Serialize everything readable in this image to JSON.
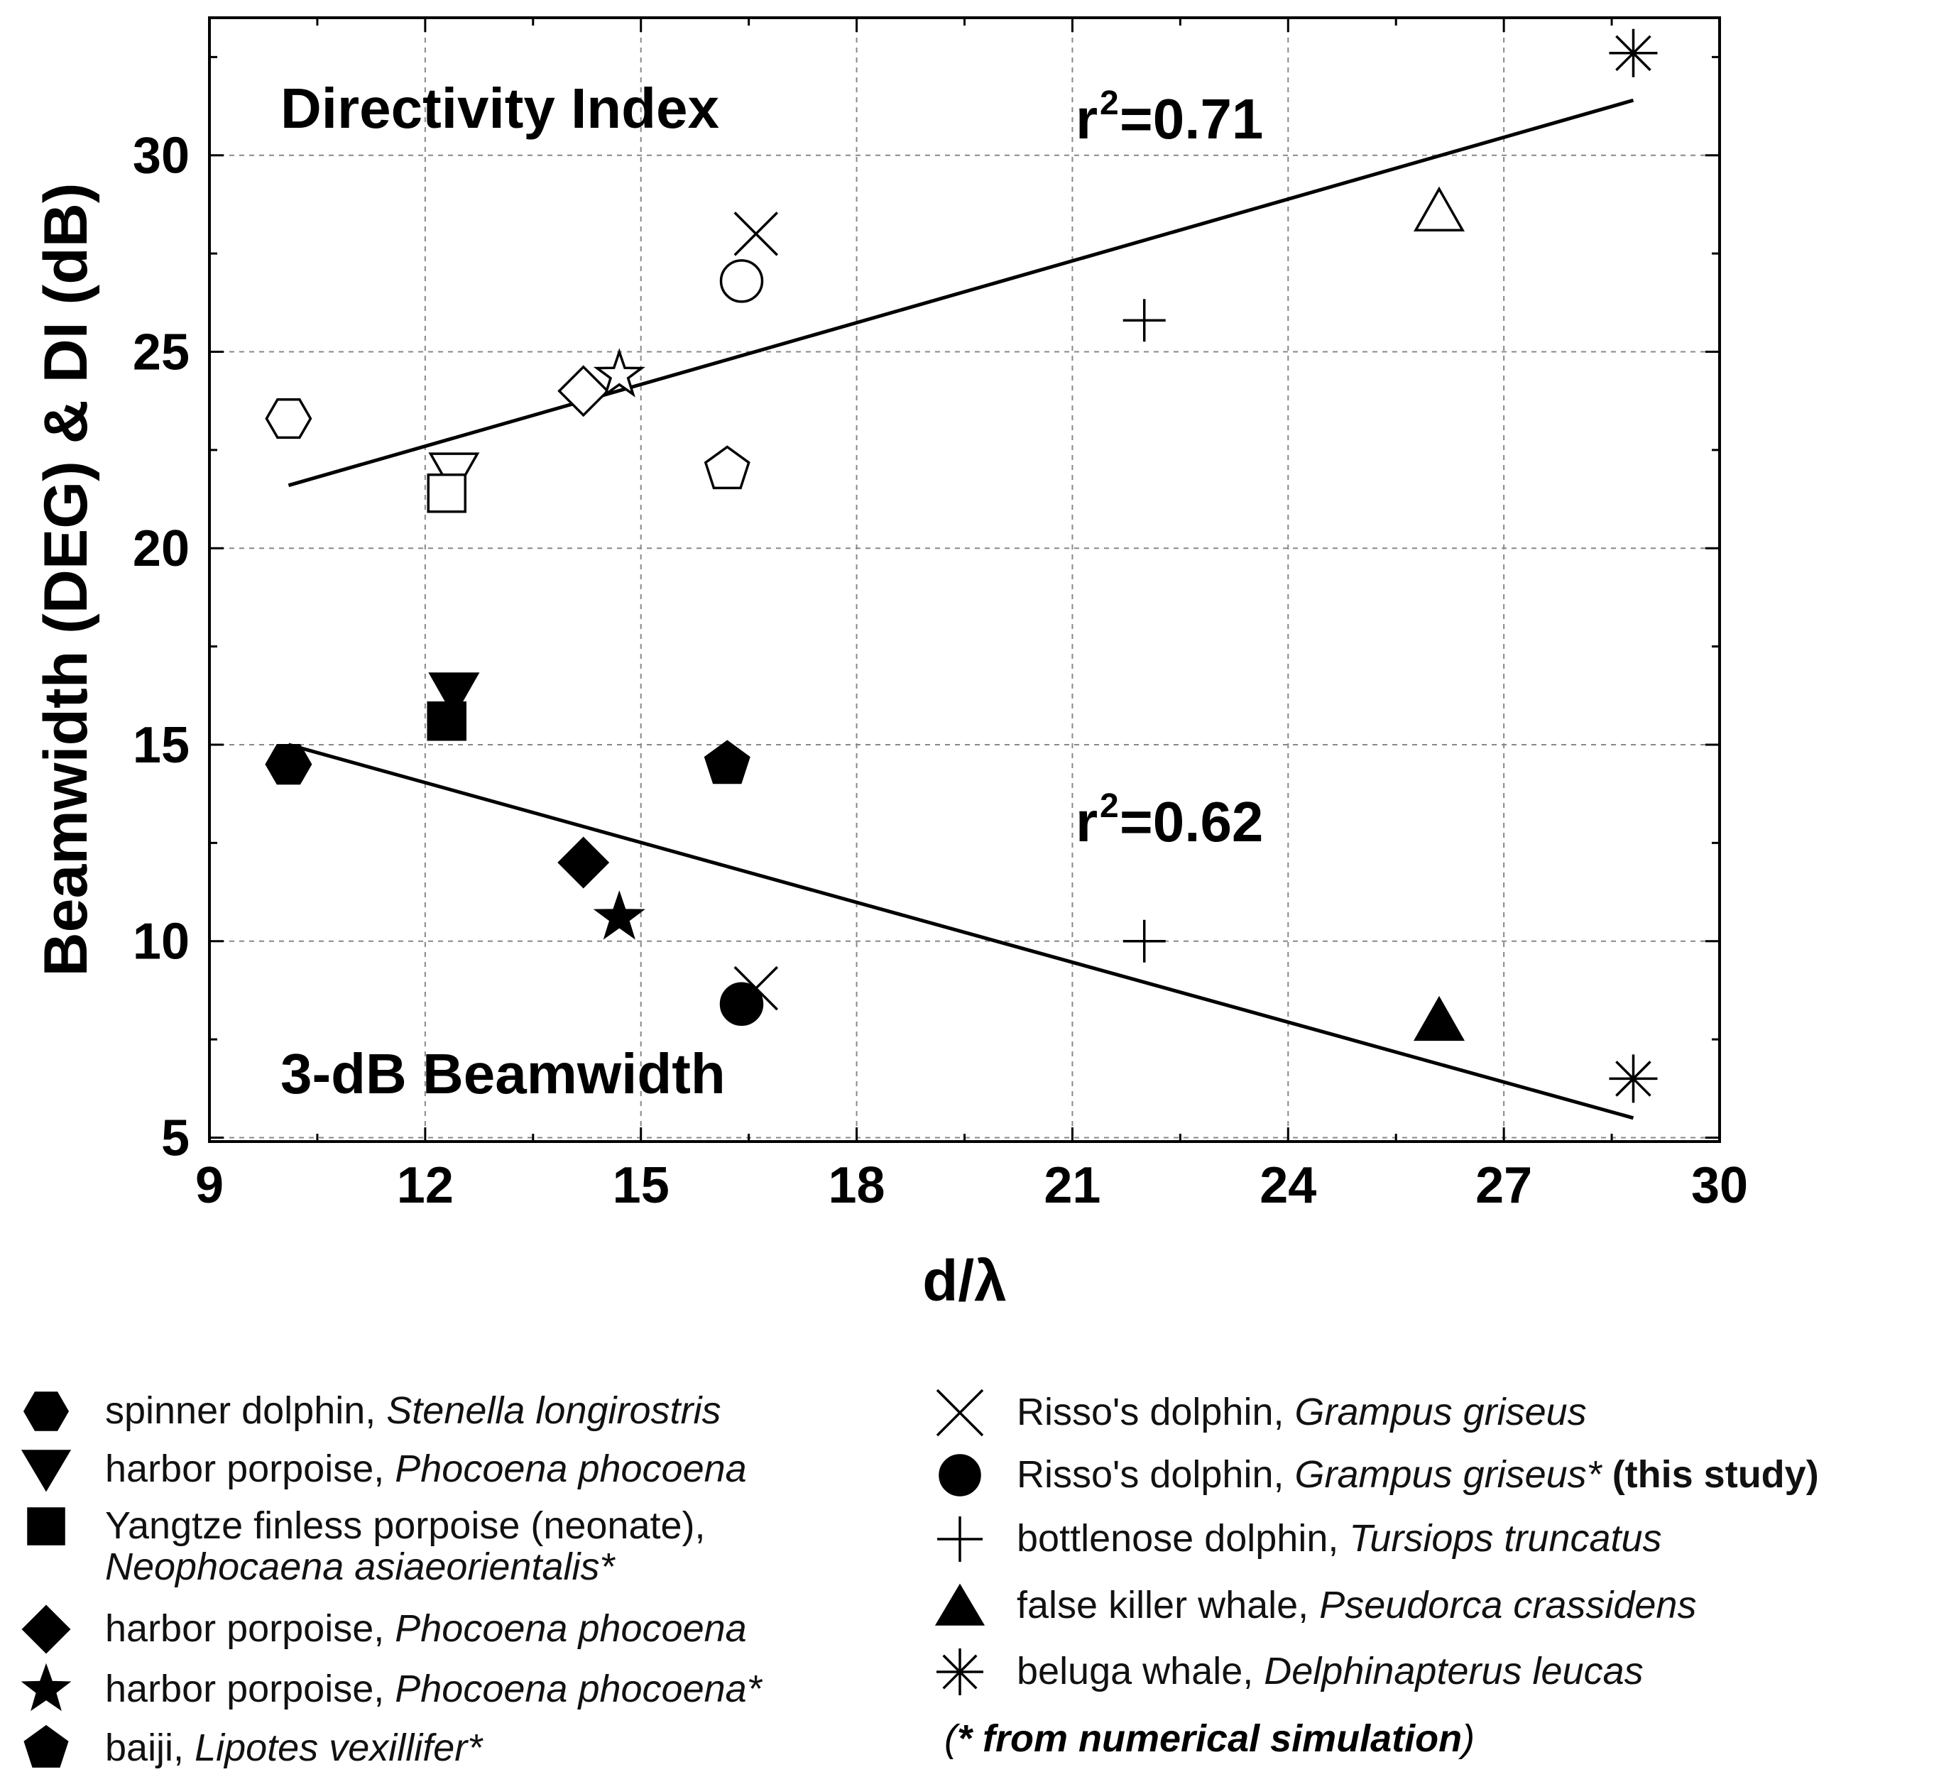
{
  "chart_data": {
    "type": "scatter",
    "xlabel": "d/λ",
    "ylabel": "Beamwidth (DEG) & DI (dB)",
    "xlim": [
      9,
      30
    ],
    "ylim": [
      4.9,
      33.5
    ],
    "xticks": [
      9,
      12,
      15,
      18,
      21,
      24,
      27,
      30
    ],
    "yticks": [
      5,
      10,
      15,
      20,
      25,
      30
    ],
    "grid": true,
    "annotations": {
      "di_label": "Directivity Index",
      "bw_label": "3-dB Beamwidth",
      "di_r2": "=0.71",
      "bw_r2": "=0.62"
    },
    "series": [
      {
        "name": "spinner dolphin, Stenella longirostris",
        "marker": "hexagon",
        "di": {
          "x": 10.1,
          "y": 23.3
        },
        "bw": {
          "x": 10.1,
          "y": 14.5
        }
      },
      {
        "name": "harbor porpoise, Phocoena phocoena",
        "marker": "triangle-down",
        "di": {
          "x": 12.4,
          "y": 21.9
        },
        "bw": {
          "x": 12.4,
          "y": 16.3
        }
      },
      {
        "name": "Yangtze finless porpoise (neonate), Neophocaena asiaeorientalis*",
        "marker": "square",
        "di": {
          "x": 12.3,
          "y": 21.4
        },
        "bw": {
          "x": 12.3,
          "y": 15.6
        }
      },
      {
        "name": "harbor porpoise, Phocoena phocoena",
        "marker": "diamond",
        "di": {
          "x": 14.2,
          "y": 24.0
        },
        "bw": {
          "x": 14.2,
          "y": 12.0
        }
      },
      {
        "name": "harbor porpoise, Phocoena phocoena*",
        "marker": "star",
        "di": {
          "x": 14.7,
          "y": 24.4
        },
        "bw": {
          "x": 14.7,
          "y": 10.6
        }
      },
      {
        "name": "baiji, Lipotes vexillifer*",
        "marker": "pentagon",
        "di": {
          "x": 16.2,
          "y": 22.0
        },
        "bw": {
          "x": 16.2,
          "y": 14.5
        }
      },
      {
        "name": "Risso's dolphin, Grampus griseus",
        "marker": "x",
        "di": {
          "x": 16.6,
          "y": 28.0
        },
        "bw": {
          "x": 16.6,
          "y": 8.8
        }
      },
      {
        "name": "Risso's dolphin, Grampus griseus* (this study)",
        "marker": "circle",
        "di": {
          "x": 16.4,
          "y": 26.8
        },
        "bw": {
          "x": 16.4,
          "y": 8.4
        }
      },
      {
        "name": "bottlenose dolphin, Tursiops truncatus",
        "marker": "plus",
        "di": {
          "x": 22.0,
          "y": 25.8
        },
        "bw": {
          "x": 22.0,
          "y": 10.0
        }
      },
      {
        "name": "false killer whale, Pseudorca crassidens",
        "marker": "triangle-up",
        "di": {
          "x": 26.1,
          "y": 28.6
        },
        "bw": {
          "x": 26.1,
          "y": 8.0
        }
      },
      {
        "name": "beluga whale, Delphinapterus leucas",
        "marker": "asterisk",
        "di": {
          "x": 28.8,
          "y": 32.6
        },
        "bw": {
          "x": 28.8,
          "y": 6.5
        }
      }
    ],
    "fits": [
      {
        "name": "Directivity Index fit",
        "x": [
          10.1,
          28.8
        ],
        "y": [
          21.6,
          31.4
        ]
      },
      {
        "name": "3-dB Beamwidth fit",
        "x": [
          10.1,
          28.8
        ],
        "y": [
          15.0,
          5.5
        ]
      }
    ]
  },
  "legend": {
    "left": [
      {
        "common": "spinner dolphin, ",
        "latin": "Stenella longirostris",
        "suffix": ""
      },
      {
        "common": "harbor porpoise, ",
        "latin": "Phocoena phocoena",
        "suffix": ""
      },
      {
        "common": "Yangtze finless porpoise (neonate),",
        "latin": "Neophocaena asiaeorientalis*",
        "suffix": ""
      },
      {
        "common": "harbor porpoise, ",
        "latin": "Phocoena phocoena",
        "suffix": ""
      },
      {
        "common": "harbor porpoise, ",
        "latin": "Phocoena phocoena*",
        "suffix": ""
      },
      {
        "common": "baiji, ",
        "latin": "Lipotes vexillifer*",
        "suffix": ""
      }
    ],
    "right": [
      {
        "common": "Risso's dolphin, ",
        "latin": "Grampus griseus",
        "suffix": ""
      },
      {
        "common": "Risso's dolphin, ",
        "latin": "Grampus griseus*",
        "suffix": "(this study)"
      },
      {
        "common": "bottlenose dolphin, ",
        "latin": "Tursiops truncatus",
        "suffix": ""
      },
      {
        "common": "false killer whale, ",
        "latin": "Pseudorca crassidens",
        "suffix": ""
      },
      {
        "common": "beluga whale, ",
        "latin": "Delphinapterus leucas",
        "suffix": ""
      }
    ],
    "note_open": "(",
    "note_text": "* from numerical simulation",
    "note_close": ")"
  }
}
